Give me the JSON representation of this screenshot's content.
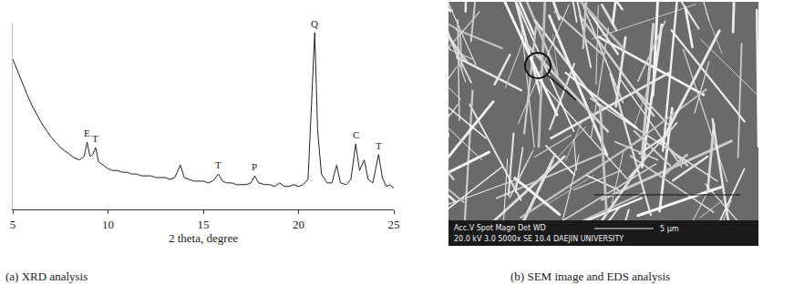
{
  "chart_data": {
    "type": "line",
    "caption": "(a) XRD analysis",
    "x_label": "2 theta, degree",
    "x": [
      5.0,
      5.25,
      5.5,
      5.75,
      6.0,
      6.25,
      6.5,
      6.75,
      7.0,
      7.25,
      7.5,
      7.75,
      8.0,
      8.25,
      8.5,
      8.75,
      8.9,
      9.05,
      9.2,
      9.35,
      9.5,
      9.75,
      10.0,
      10.25,
      10.5,
      10.75,
      11.0,
      11.25,
      11.5,
      11.75,
      12.0,
      12.25,
      12.5,
      12.75,
      13.0,
      13.25,
      13.5,
      13.8,
      14.0,
      14.25,
      14.5,
      14.75,
      15.0,
      15.25,
      15.5,
      15.8,
      16.0,
      16.25,
      16.5,
      16.75,
      17.0,
      17.25,
      17.5,
      17.7,
      17.9,
      18.25,
      18.5,
      18.75,
      19.0,
      19.25,
      19.5,
      19.75,
      20.0,
      20.25,
      20.5,
      20.7,
      20.85,
      21.0,
      21.2,
      21.5,
      21.75,
      22.0,
      22.2,
      22.5,
      22.75,
      23.0,
      23.2,
      23.45,
      23.65,
      23.9,
      24.2,
      24.4,
      24.6,
      24.8,
      25.0
    ],
    "values": [
      85,
      78,
      71,
      65,
      59,
      54,
      49,
      45,
      41,
      38,
      35,
      33,
      31,
      29,
      28,
      30,
      38,
      30,
      31,
      35,
      27,
      25,
      23,
      22,
      22,
      21,
      21,
      20,
      20,
      19,
      19,
      19,
      18,
      18,
      18,
      17,
      18,
      25,
      18,
      17,
      16,
      16,
      16,
      15,
      16,
      20,
      16,
      15,
      15,
      14,
      14,
      14,
      15,
      19,
      15,
      14,
      14,
      13,
      15,
      13,
      13,
      14,
      13,
      14,
      17,
      60,
      100,
      45,
      20,
      15,
      15,
      25,
      15,
      14,
      17,
      37,
      22,
      28,
      17,
      15,
      31,
      18,
      13,
      14,
      12
    ],
    "color": "#222222",
    "xlim": [
      5,
      25
    ],
    "xticks": [
      5,
      10,
      15,
      20,
      25
    ],
    "ylim": [
      0,
      105
    ],
    "tick_labels": "x",
    "grid": false,
    "annotations": [
      {
        "text": "E",
        "x": 8.9,
        "y": 38
      },
      {
        "text": "T",
        "x": 9.35,
        "y": 35
      },
      {
        "text": "T",
        "x": 15.8,
        "y": 20
      },
      {
        "text": "P",
        "x": 17.7,
        "y": 19
      },
      {
        "text": "Q",
        "x": 20.85,
        "y": 100
      },
      {
        "text": "C",
        "x": 23.0,
        "y": 37
      },
      {
        "text": "T",
        "x": 24.2,
        "y": 31
      }
    ]
  },
  "image": {
    "caption": "(b) SEM image and EDS analysis",
    "texts": [
      "Acc.V  Spot  Magn    Det  WD",
      "20.0 kV 3.0  5000x   SE  10.4  DAEJIN UNIVERSITY",
      "5 μm"
    ]
  }
}
